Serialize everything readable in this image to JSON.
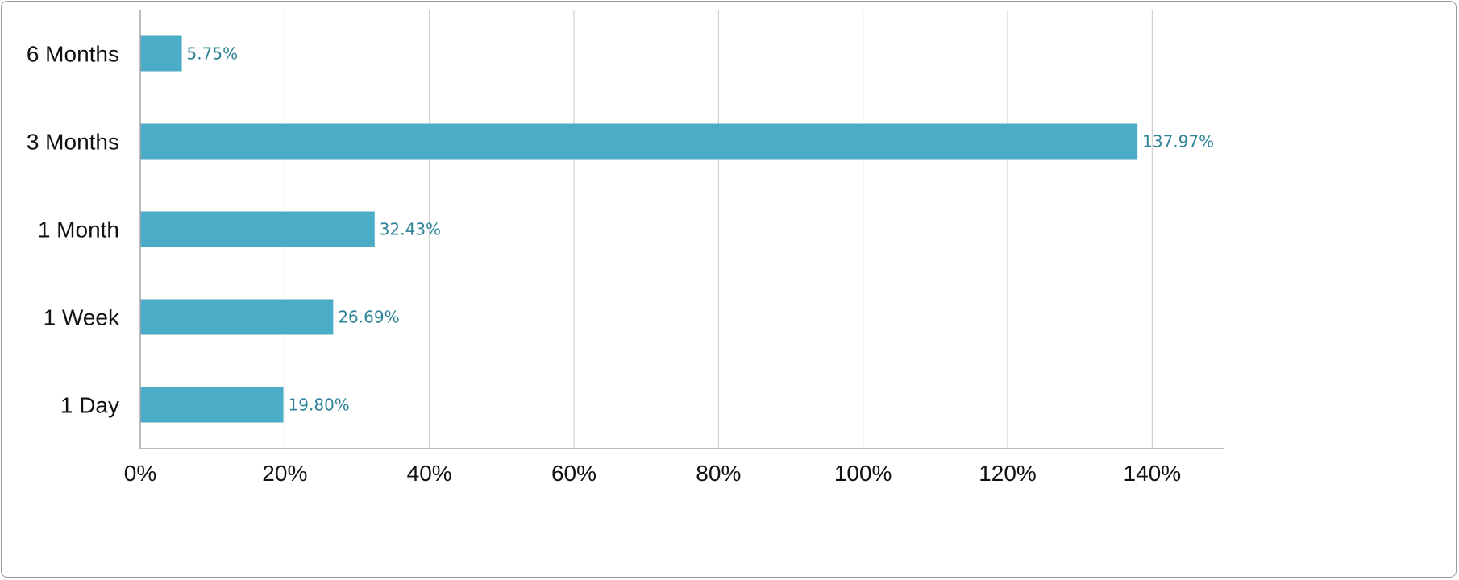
{
  "chart_data": {
    "type": "bar",
    "orientation": "horizontal",
    "categories": [
      "1 Day",
      "1 Week",
      "1 Month",
      "3 Months",
      "6 Months"
    ],
    "values": [
      19.8,
      26.69,
      32.43,
      137.97,
      5.75
    ],
    "data_labels": [
      "19.80%",
      "26.69%",
      "32.43%",
      "137.97%",
      "5.75%"
    ],
    "x_ticks": [
      "0%",
      "20%",
      "40%",
      "60%",
      "80%",
      "100%",
      "120%",
      "140%"
    ],
    "x_tick_values": [
      0,
      20,
      40,
      60,
      80,
      100,
      120,
      140
    ],
    "xlim": [
      0,
      150
    ],
    "grid": "vertical",
    "legend": "none",
    "colors": {
      "bar": "#4aacc6",
      "data_label": "#2f8497",
      "grid": "#c8c8c8",
      "axis": "#a6a6a6"
    }
  }
}
